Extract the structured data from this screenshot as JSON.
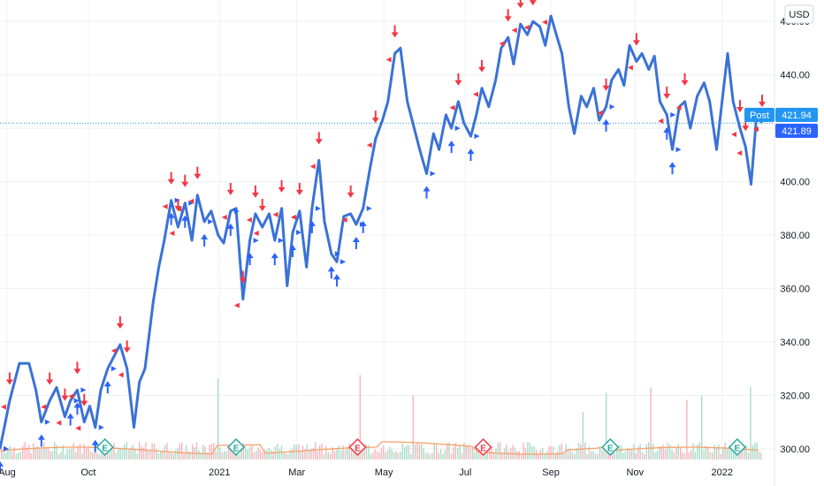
{
  "currency": "USD",
  "colors": {
    "price_line": "#3a72d6",
    "buy_arrow": "#2962ff",
    "sell_arrow": "#f23645",
    "volume_ma": "#f7a26b",
    "volume_up": "#a9dcc8",
    "volume_down": "#f6b5ba",
    "post_badge": "#2196f3",
    "price_badge": "#2962ff",
    "earnings_teal": "#26a69a",
    "earnings_red": "#f23645"
  },
  "price_labels": {
    "post_label": "Post",
    "post_price": "421.94",
    "last_price": "421.89"
  },
  "chart_data": {
    "type": "line",
    "title": "",
    "ylim": [
      296,
      468
    ],
    "y_ticks": [
      300,
      320,
      340,
      360,
      380,
      400,
      420,
      440,
      460
    ],
    "y_tick_labels": [
      "300.00",
      "320.00",
      "340.00",
      "360.00",
      "380.00",
      "400.00",
      "420.00",
      "440.00",
      "460.00"
    ],
    "x_range": [
      "2020-07-29",
      "2022-02-01"
    ],
    "x_ticks": [
      {
        "date": "2020-08-03",
        "label": "Aug"
      },
      {
        "date": "2020-10-01",
        "label": "Oct"
      },
      {
        "date": "2021-01-04",
        "label": "2021"
      },
      {
        "date": "2021-03-01",
        "label": "Mar"
      },
      {
        "date": "2021-05-03",
        "label": "May"
      },
      {
        "date": "2021-07-01",
        "label": "Jul"
      },
      {
        "date": "2021-09-01",
        "label": "Sep"
      },
      {
        "date": "2021-11-01",
        "label": "Nov"
      },
      {
        "date": "2022-01-03",
        "label": "2022"
      }
    ],
    "series": [
      {
        "points": [
          [
            "2020-07-29",
            300
          ],
          [
            "2020-08-05",
            318
          ],
          [
            "2020-08-12",
            332
          ],
          [
            "2020-08-19",
            332
          ],
          [
            "2020-08-24",
            322
          ],
          [
            "2020-08-28",
            310
          ],
          [
            "2020-09-03",
            318
          ],
          [
            "2020-09-08",
            323
          ],
          [
            "2020-09-14",
            312
          ],
          [
            "2020-09-18",
            318
          ],
          [
            "2020-09-23",
            322
          ],
          [
            "2020-09-28",
            310
          ],
          [
            "2020-10-02",
            316
          ],
          [
            "2020-10-06",
            308
          ],
          [
            "2020-10-10",
            322
          ],
          [
            "2020-10-15",
            330
          ],
          [
            "2020-10-20",
            335
          ],
          [
            "2020-10-24",
            339
          ],
          [
            "2020-10-29",
            330
          ],
          [
            "2020-11-03",
            308
          ],
          [
            "2020-11-07",
            325
          ],
          [
            "2020-11-11",
            330
          ],
          [
            "2020-11-17",
            355
          ],
          [
            "2020-11-21",
            368
          ],
          [
            "2020-11-25",
            378
          ],
          [
            "2020-11-30",
            393
          ],
          [
            "2020-12-05",
            383
          ],
          [
            "2020-12-10",
            392
          ],
          [
            "2020-12-15",
            378
          ],
          [
            "2020-12-19",
            395
          ],
          [
            "2020-12-24",
            385
          ],
          [
            "2020-12-29",
            389
          ],
          [
            "2021-01-03",
            380
          ],
          [
            "2021-01-07",
            377
          ],
          [
            "2021-01-12",
            389
          ],
          [
            "2021-01-16",
            390
          ],
          [
            "2021-01-21",
            356
          ],
          [
            "2021-01-26",
            378
          ],
          [
            "2021-01-30",
            388
          ],
          [
            "2021-02-04",
            383
          ],
          [
            "2021-02-09",
            388
          ],
          [
            "2021-02-13",
            378
          ],
          [
            "2021-02-18",
            390
          ],
          [
            "2021-02-22",
            361
          ],
          [
            "2021-02-26",
            381
          ],
          [
            "2021-03-03",
            389
          ],
          [
            "2021-03-08",
            368
          ],
          [
            "2021-03-12",
            390
          ],
          [
            "2021-03-17",
            408
          ],
          [
            "2021-03-21",
            385
          ],
          [
            "2021-03-26",
            373
          ],
          [
            "2021-03-30",
            370
          ],
          [
            "2021-04-04",
            387
          ],
          [
            "2021-04-09",
            388
          ],
          [
            "2021-04-13",
            384
          ],
          [
            "2021-04-18",
            390
          ],
          [
            "2021-04-23",
            405
          ],
          [
            "2021-04-27",
            416
          ],
          [
            "2021-05-02",
            423
          ],
          [
            "2021-05-06",
            430
          ],
          [
            "2021-05-11",
            448
          ],
          [
            "2021-05-15",
            450
          ],
          [
            "2021-05-20",
            430
          ],
          [
            "2021-05-25",
            420
          ],
          [
            "2021-05-29",
            412
          ],
          [
            "2021-06-03",
            403
          ],
          [
            "2021-06-08",
            418
          ],
          [
            "2021-06-12",
            412
          ],
          [
            "2021-06-17",
            425
          ],
          [
            "2021-06-21",
            420
          ],
          [
            "2021-06-26",
            430
          ],
          [
            "2021-06-30",
            422
          ],
          [
            "2021-07-05",
            417
          ],
          [
            "2021-07-09",
            425
          ],
          [
            "2021-07-13",
            435
          ],
          [
            "2021-07-18",
            428
          ],
          [
            "2021-07-23",
            438
          ],
          [
            "2021-07-27",
            450
          ],
          [
            "2021-08-01",
            454
          ],
          [
            "2021-08-05",
            444
          ],
          [
            "2021-08-10",
            459
          ],
          [
            "2021-08-15",
            455
          ],
          [
            "2021-08-19",
            460
          ],
          [
            "2021-08-24",
            458
          ],
          [
            "2021-08-28",
            451
          ],
          [
            "2021-09-01",
            462
          ],
          [
            "2021-09-05",
            455
          ],
          [
            "2021-09-09",
            448
          ],
          [
            "2021-09-14",
            428
          ],
          [
            "2021-09-18",
            418
          ],
          [
            "2021-09-23",
            432
          ],
          [
            "2021-09-27",
            428
          ],
          [
            "2021-10-02",
            435
          ],
          [
            "2021-10-06",
            423
          ],
          [
            "2021-10-11",
            428
          ],
          [
            "2021-10-15",
            438
          ],
          [
            "2021-10-20",
            442
          ],
          [
            "2021-10-24",
            436
          ],
          [
            "2021-10-28",
            451
          ],
          [
            "2021-11-02",
            445
          ],
          [
            "2021-11-06",
            448
          ],
          [
            "2021-11-11",
            442
          ],
          [
            "2021-11-15",
            447
          ],
          [
            "2021-11-19",
            430
          ],
          [
            "2021-11-24",
            425
          ],
          [
            "2021-11-28",
            412
          ],
          [
            "2021-12-03",
            428
          ],
          [
            "2021-12-07",
            430
          ],
          [
            "2021-12-11",
            420
          ],
          [
            "2021-12-16",
            432
          ],
          [
            "2021-12-21",
            437
          ],
          [
            "2021-12-25",
            430
          ],
          [
            "2021-12-30",
            412
          ],
          [
            "2022-01-03",
            430
          ],
          [
            "2022-01-07",
            448
          ],
          [
            "2022-01-11",
            430
          ],
          [
            "2022-01-16",
            420
          ],
          [
            "2022-01-20",
            413
          ],
          [
            "2022-01-24",
            399
          ],
          [
            "2022-01-28",
            425
          ],
          [
            "2022-02-01",
            422
          ]
        ]
      }
    ],
    "buy_arrows": [
      "2020-07-29",
      "2020-08-28",
      "2020-09-18",
      "2020-09-23",
      "2020-10-06",
      "2020-10-15",
      "2020-11-30",
      "2020-12-10",
      "2020-12-24",
      "2021-01-12",
      "2021-01-26",
      "2021-02-13",
      "2021-02-26",
      "2021-03-12",
      "2021-03-26",
      "2021-03-30",
      "2021-04-13",
      "2021-04-18",
      "2021-06-03",
      "2021-06-21",
      "2021-07-05",
      "2021-10-11",
      "2021-11-24",
      "2021-11-28"
    ],
    "sell_arrows": [
      "2020-08-05",
      "2020-09-03",
      "2020-09-14",
      "2020-09-23",
      "2020-09-28",
      "2020-10-24",
      "2020-10-29",
      "2020-11-30",
      "2020-12-05",
      "2020-12-10",
      "2020-12-19",
      "2021-01-12",
      "2021-01-21",
      "2021-01-30",
      "2021-02-04",
      "2021-02-18",
      "2021-03-03",
      "2021-03-17",
      "2021-04-09",
      "2021-04-27",
      "2021-05-11",
      "2021-06-26",
      "2021-07-13",
      "2021-08-01",
      "2021-08-10",
      "2021-08-19",
      "2021-09-01",
      "2021-10-11",
      "2021-11-02",
      "2021-11-24",
      "2021-12-07",
      "2022-01-16",
      "2022-01-20",
      "2022-02-01"
    ],
    "earnings_markers": [
      {
        "date": "2020-10-13",
        "letter": "E",
        "kind": "teal"
      },
      {
        "date": "2021-01-16",
        "letter": "E",
        "kind": "teal"
      },
      {
        "date": "2021-04-14",
        "letter": "E",
        "kind": "red"
      },
      {
        "date": "2021-07-14",
        "letter": "E",
        "kind": "red"
      },
      {
        "date": "2021-10-14",
        "letter": "E",
        "kind": "teal"
      },
      {
        "date": "2022-01-14",
        "letter": "E",
        "kind": "teal"
      }
    ]
  }
}
